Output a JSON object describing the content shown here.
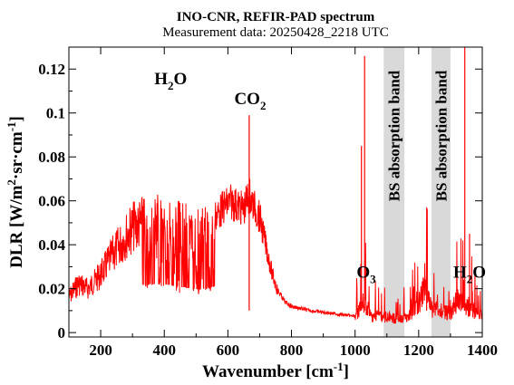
{
  "chart_data": {
    "type": "line",
    "title": "INO-CNR, REFIR-PAD spectrum",
    "subtitle": "Measurement data: 20250428_2218 UTC",
    "xlabel": "Wavenumber [cm⁻¹]",
    "ylabel": "DLR [W/m²·sr·cm⁻¹]",
    "xlim": [
      100,
      1400
    ],
    "ylim": [
      -0.002,
      0.13
    ],
    "x_ticks": [
      200,
      400,
      600,
      800,
      1000,
      1200,
      1400
    ],
    "y_ticks": [
      0,
      0.02,
      0.04,
      0.06,
      0.08,
      0.1,
      0.12
    ],
    "x_tick_labels": [
      "200",
      "400",
      "600",
      "800",
      "1000",
      "1200",
      "1400"
    ],
    "y_tick_labels": [
      "0",
      "0.02",
      "0.04",
      "0.06",
      "0.08",
      "0.1",
      "0.12"
    ],
    "grid": false,
    "series": [
      {
        "color": "#ff0000",
        "x": [
          100,
          130,
          160,
          200,
          240,
          280,
          300,
          330,
          360,
          390,
          420,
          450,
          480,
          510,
          540,
          570,
          590,
          610,
          630,
          650,
          667,
          680,
          700,
          720,
          740,
          760,
          780,
          800,
          850,
          900,
          950,
          1000,
          1030,
          1040,
          1050,
          1070,
          1090,
          1150,
          1180,
          1200,
          1220,
          1230,
          1240,
          1300,
          1320,
          1340,
          1360,
          1380,
          1400
        ],
        "y": [
          0.02,
          0.028,
          0.025,
          0.033,
          0.045,
          0.055,
          0.06,
          0.062,
          0.063,
          0.063,
          0.062,
          0.06,
          0.058,
          0.056,
          0.058,
          0.062,
          0.066,
          0.068,
          0.066,
          0.064,
          0.072,
          0.066,
          0.06,
          0.045,
          0.03,
          0.02,
          0.015,
          0.013,
          0.011,
          0.01,
          0.009,
          0.008,
          0.02,
          0.015,
          0.01,
          0.012,
          0.01,
          0.008,
          0.012,
          0.018,
          0.03,
          0.02,
          0.015,
          0.012,
          0.02,
          0.018,
          0.015,
          0.012,
          0.01
        ]
      }
    ],
    "spikes": [
      {
        "x": 667,
        "y": 0.099
      },
      {
        "x": 1030,
        "y": 0.126
      },
      {
        "x": 1020,
        "y": 0.085
      },
      {
        "x": 1225,
        "y": 0.042
      },
      {
        "x": 1345,
        "y": 0.13
      },
      {
        "x": 1360,
        "y": 0.045
      }
    ],
    "bands": [
      {
        "x0": 1090,
        "x1": 1155,
        "label": "BS absorption band",
        "color": "#d9d9d9"
      },
      {
        "x0": 1240,
        "x1": 1300,
        "label": "BS absorption band",
        "color": "#d9d9d9"
      }
    ],
    "annotations": [
      {
        "text_main": "H",
        "text_sub": "2",
        "text_tail": "O",
        "x": 420,
        "y": 0.113
      },
      {
        "text_main": "CO",
        "text_sub": "2",
        "text_tail": "",
        "x": 670,
        "y": 0.104
      },
      {
        "text_main": "O",
        "text_sub": "3",
        "text_tail": "",
        "x": 1035,
        "y": 0.025
      },
      {
        "text_main": "H",
        "text_sub": "2",
        "text_tail": "O",
        "x": 1360,
        "y": 0.025
      }
    ]
  }
}
